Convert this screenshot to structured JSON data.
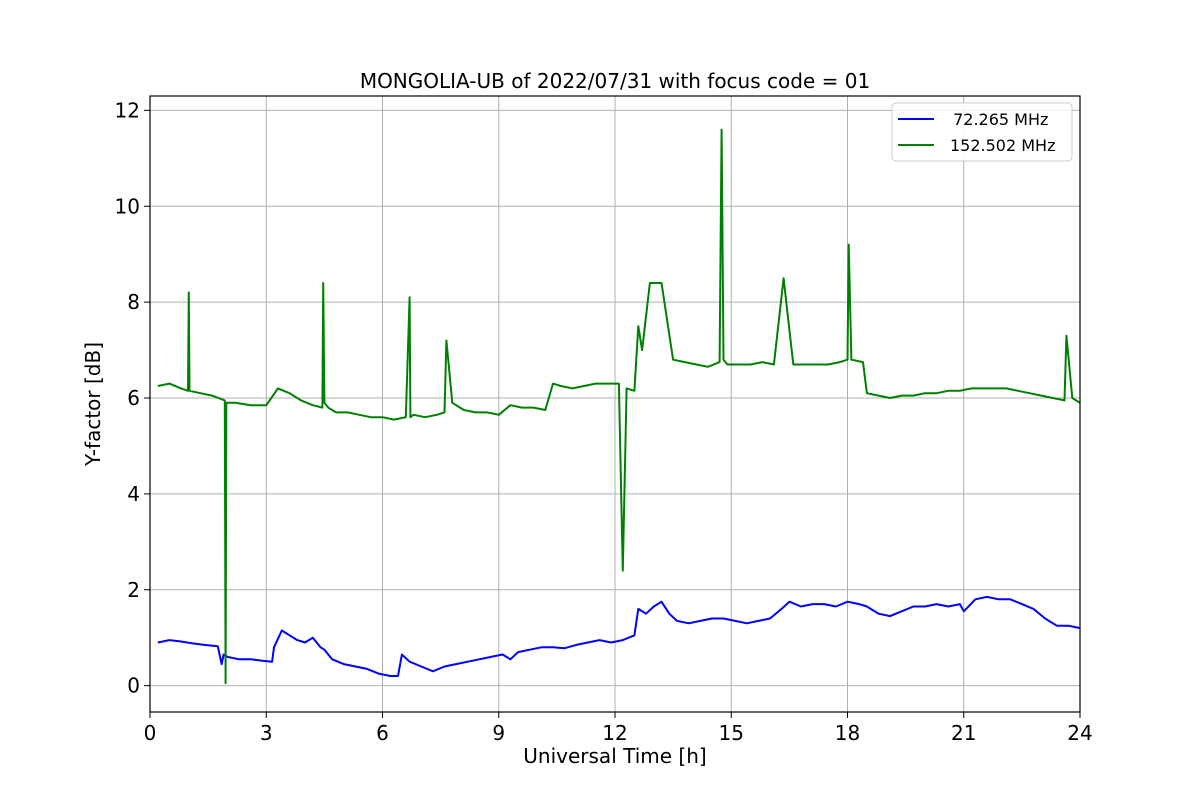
{
  "chart_data": {
    "type": "line",
    "title": "MONGOLIA-UB of 2022/07/31 with focus code = 01",
    "xlabel": "Universal Time [h]",
    "ylabel": "Y-factor [dB]",
    "xlim": [
      0,
      24
    ],
    "ylim": [
      -0.55,
      12.3
    ],
    "x_ticks": [
      0,
      3,
      6,
      9,
      12,
      15,
      18,
      21,
      24
    ],
    "y_ticks": [
      0,
      2,
      4,
      6,
      8,
      10,
      12
    ],
    "grid": true,
    "legend_position": "top-right",
    "series": [
      {
        "name": " 72.265 MHz",
        "color": "#0000ff",
        "x": [
          0.2,
          0.5,
          0.8,
          1.1,
          1.4,
          1.75,
          1.85,
          1.9,
          2.0,
          2.3,
          2.6,
          2.9,
          3.15,
          3.2,
          3.4,
          3.6,
          3.8,
          4.0,
          4.2,
          4.4,
          4.5,
          4.7,
          5.0,
          5.3,
          5.6,
          5.9,
          6.2,
          6.4,
          6.5,
          6.7,
          7.0,
          7.3,
          7.6,
          7.9,
          8.2,
          8.5,
          8.8,
          9.1,
          9.3,
          9.5,
          9.8,
          10.1,
          10.4,
          10.7,
          11.0,
          11.3,
          11.6,
          11.9,
          12.2,
          12.5,
          12.6,
          12.8,
          13.0,
          13.2,
          13.4,
          13.6,
          13.9,
          14.2,
          14.5,
          14.8,
          15.1,
          15.4,
          15.7,
          16.0,
          16.3,
          16.5,
          16.8,
          17.1,
          17.4,
          17.7,
          18.0,
          18.3,
          18.5,
          18.8,
          19.1,
          19.4,
          19.7,
          20.0,
          20.3,
          20.6,
          20.9,
          21.0,
          21.3,
          21.6,
          21.9,
          22.2,
          22.5,
          22.8,
          23.1,
          23.4,
          23.7,
          24.0
        ],
        "y": [
          0.9,
          0.95,
          0.92,
          0.88,
          0.85,
          0.82,
          0.45,
          0.65,
          0.6,
          0.55,
          0.55,
          0.52,
          0.5,
          0.8,
          1.15,
          1.05,
          0.95,
          0.9,
          1.0,
          0.8,
          0.75,
          0.55,
          0.45,
          0.4,
          0.35,
          0.25,
          0.2,
          0.2,
          0.65,
          0.5,
          0.4,
          0.3,
          0.4,
          0.45,
          0.5,
          0.55,
          0.6,
          0.65,
          0.55,
          0.7,
          0.75,
          0.8,
          0.8,
          0.78,
          0.85,
          0.9,
          0.95,
          0.9,
          0.95,
          1.05,
          1.6,
          1.5,
          1.65,
          1.75,
          1.5,
          1.35,
          1.3,
          1.35,
          1.4,
          1.4,
          1.35,
          1.3,
          1.35,
          1.4,
          1.6,
          1.75,
          1.65,
          1.7,
          1.7,
          1.65,
          1.75,
          1.7,
          1.65,
          1.5,
          1.45,
          1.55,
          1.65,
          1.65,
          1.7,
          1.65,
          1.7,
          1.55,
          1.8,
          1.85,
          1.8,
          1.8,
          1.7,
          1.6,
          1.4,
          1.25,
          1.25,
          1.2
        ]
      },
      {
        "name": "152.502 MHz",
        "color": "#008000",
        "x": [
          0.2,
          0.5,
          0.8,
          0.98,
          1.0,
          1.02,
          1.3,
          1.6,
          1.93,
          1.95,
          1.97,
          2.2,
          2.6,
          3.0,
          3.3,
          3.6,
          3.9,
          4.2,
          4.45,
          4.47,
          4.5,
          4.6,
          4.8,
          5.1,
          5.4,
          5.7,
          6.0,
          6.3,
          6.6,
          6.7,
          6.72,
          6.8,
          7.1,
          7.4,
          7.6,
          7.65,
          7.8,
          8.1,
          8.4,
          8.7,
          9.0,
          9.3,
          9.6,
          9.9,
          10.2,
          10.4,
          10.6,
          10.9,
          11.2,
          11.5,
          11.8,
          12.1,
          12.2,
          12.3,
          12.5,
          12.6,
          12.7,
          12.9,
          13.2,
          13.5,
          13.8,
          14.1,
          14.4,
          14.7,
          14.75,
          14.8,
          14.9,
          15.2,
          15.5,
          15.8,
          16.1,
          16.35,
          16.6,
          16.9,
          17.2,
          17.5,
          17.8,
          18.0,
          18.03,
          18.1,
          18.4,
          18.5,
          18.8,
          19.1,
          19.4,
          19.7,
          20.0,
          20.3,
          20.6,
          20.9,
          21.2,
          21.5,
          21.8,
          22.1,
          22.4,
          22.7,
          23.0,
          23.3,
          23.6,
          23.65,
          23.8,
          24.0
        ],
        "y": [
          6.25,
          6.3,
          6.2,
          6.15,
          8.2,
          6.15,
          6.1,
          6.05,
          5.95,
          0.05,
          5.9,
          5.9,
          5.85,
          5.85,
          6.2,
          6.1,
          5.95,
          5.85,
          5.8,
          8.4,
          5.9,
          5.8,
          5.7,
          5.7,
          5.65,
          5.6,
          5.6,
          5.55,
          5.6,
          8.1,
          5.6,
          5.65,
          5.6,
          5.65,
          5.7,
          7.2,
          5.9,
          5.75,
          5.7,
          5.7,
          5.65,
          5.85,
          5.8,
          5.8,
          5.75,
          6.3,
          6.25,
          6.2,
          6.25,
          6.3,
          6.3,
          6.3,
          2.4,
          6.2,
          6.15,
          7.5,
          7.0,
          8.4,
          8.4,
          6.8,
          6.75,
          6.7,
          6.65,
          6.75,
          11.6,
          6.8,
          6.7,
          6.7,
          6.7,
          6.75,
          6.7,
          8.5,
          6.7,
          6.7,
          6.7,
          6.7,
          6.75,
          6.8,
          9.2,
          6.8,
          6.75,
          6.1,
          6.05,
          6.0,
          6.05,
          6.05,
          6.1,
          6.1,
          6.15,
          6.15,
          6.2,
          6.2,
          6.2,
          6.2,
          6.15,
          6.1,
          6.05,
          6.0,
          5.95,
          7.3,
          6.0,
          5.9
        ]
      }
    ]
  }
}
